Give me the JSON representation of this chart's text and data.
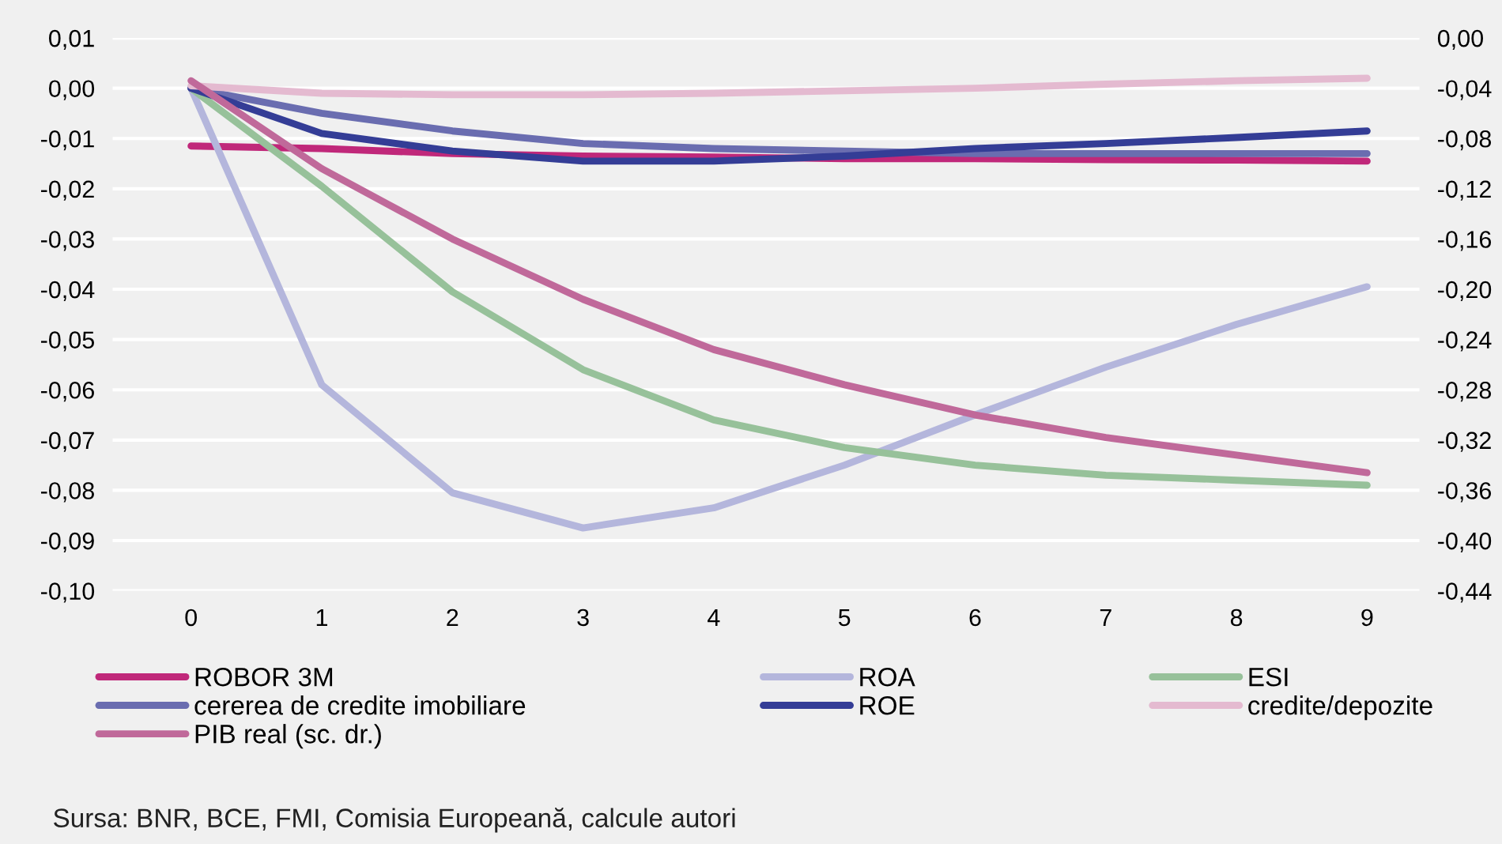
{
  "chart_data": {
    "type": "line",
    "categories": [
      "0",
      "1",
      "2",
      "3",
      "4",
      "5",
      "6",
      "7",
      "8",
      "9"
    ],
    "ylim": [
      -0.1,
      0.01
    ],
    "yticks": [
      {
        "value": 0.01,
        "label": "0,01"
      },
      {
        "value": 0.0,
        "label": "0,00"
      },
      {
        "value": -0.01,
        "label": "-0,01"
      },
      {
        "value": -0.02,
        "label": "-0,02"
      },
      {
        "value": -0.03,
        "label": "-0,03"
      },
      {
        "value": -0.04,
        "label": "-0,04"
      },
      {
        "value": -0.05,
        "label": "-0,05"
      },
      {
        "value": -0.06,
        "label": "-0,06"
      },
      {
        "value": -0.07,
        "label": "-0,07"
      },
      {
        "value": -0.08,
        "label": "-0,08"
      },
      {
        "value": -0.09,
        "label": "-0,09"
      },
      {
        "value": -0.1,
        "label": "-0,10"
      }
    ],
    "y2lim": [
      -0.44,
      0
    ],
    "y2ticks": [
      {
        "value": 0,
        "label": "0,00"
      },
      {
        "value": -0.04,
        "label": "-0,04"
      },
      {
        "value": -0.08,
        "label": "-0,08"
      },
      {
        "value": -0.12,
        "label": "-0,12"
      },
      {
        "value": -0.16,
        "label": "-0,16"
      },
      {
        "value": -0.2,
        "label": "-0,20"
      },
      {
        "value": -0.24,
        "label": "-0,24"
      },
      {
        "value": -0.28,
        "label": "-0,28"
      },
      {
        "value": -0.32,
        "label": "-0,32"
      },
      {
        "value": -0.36,
        "label": "-0,36"
      },
      {
        "value": -0.4,
        "label": "-0,40"
      },
      {
        "value": -0.44,
        "label": "-0,44"
      }
    ],
    "grid": "y",
    "legend": "bottom",
    "line_style": "solid",
    "marker": "none",
    "series": [
      {
        "name": "ROBOR 3M",
        "color": "#c0287a",
        "values": [
          -0.0115,
          -0.012,
          -0.013,
          -0.0135,
          -0.0137,
          -0.014,
          -0.014,
          -0.0142,
          -0.0143,
          -0.0145
        ]
      },
      {
        "name": "ROA",
        "color": "#b4b6dc",
        "values": [
          0,
          -0.059,
          -0.0805,
          -0.0875,
          -0.0835,
          -0.075,
          -0.065,
          -0.0555,
          -0.047,
          -0.0395
        ]
      },
      {
        "name": "ESI",
        "color": "#97c19a",
        "values": [
          0,
          -0.0195,
          -0.0405,
          -0.056,
          -0.066,
          -0.0715,
          -0.075,
          -0.077,
          -0.078,
          -0.079
        ]
      },
      {
        "name": "cererea de credite imobiliare",
        "color": "#6a6db0",
        "values": [
          0,
          -0.005,
          -0.0085,
          -0.011,
          -0.012,
          -0.0125,
          -0.013,
          -0.013,
          -0.013,
          -0.013
        ]
      },
      {
        "name": "ROE",
        "color": "#343d96",
        "values": [
          0,
          -0.009,
          -0.0125,
          -0.0145,
          -0.0145,
          -0.0135,
          -0.012,
          -0.011,
          -0.0098,
          -0.0085
        ]
      },
      {
        "name": "credite/depozite",
        "color": "#e4bad0",
        "values": [
          0.0005,
          -0.001,
          -0.0013,
          -0.0013,
          -0.001,
          -0.0005,
          0.0,
          0.0008,
          0.0015,
          0.002
        ]
      },
      {
        "name": "PIB real (sc. dr.)",
        "color": "#c0699a",
        "axis": "y2",
        "values": [
          -0.034,
          -0.104,
          -0.16,
          -0.208,
          -0.248,
          -0.276,
          -0.3,
          -0.318,
          -0.332,
          -0.346
        ]
      }
    ],
    "annotations": [
      "Sursa: BNR, BCE, FMI, Comisia Europeană, calcule autori"
    ]
  }
}
